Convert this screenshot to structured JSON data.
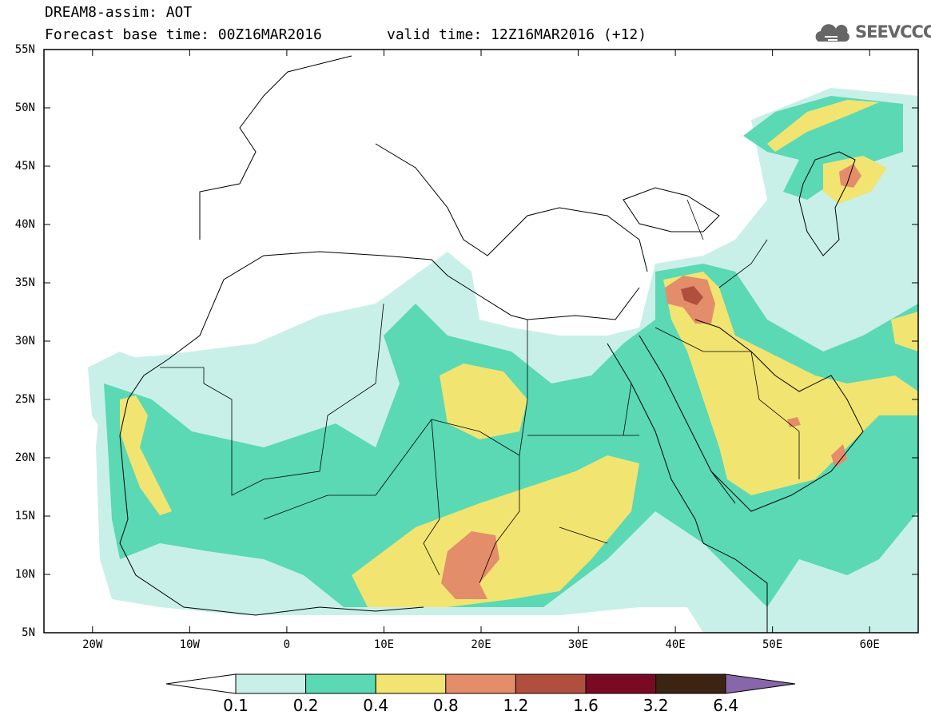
{
  "header": {
    "title": "DREAM8-assim: AOT",
    "base_time": "Forecast base time: 00Z16MAR2016",
    "valid_time": "valid time: 12Z16MAR2016 (+12)",
    "logo_text": "SEEVCCC"
  },
  "map": {
    "lon_range": [
      -25,
      65
    ],
    "lat_range": [
      5,
      55
    ],
    "lat_ticks": [
      "55N",
      "50N",
      "45N",
      "40N",
      "35N",
      "30N",
      "25N",
      "20N",
      "15N",
      "10N",
      "5N"
    ],
    "lon_ticks": [
      "20W",
      "10W",
      "0",
      "10E",
      "20E",
      "30E",
      "40E",
      "50E",
      "60E"
    ]
  },
  "colorbar": {
    "labels": [
      "0.1",
      "0.2",
      "0.4",
      "0.8",
      "1.2",
      "1.6",
      "3.2",
      "6.4"
    ],
    "colors": [
      "#c8f0e8",
      "#5ad9b4",
      "#f2e471",
      "#e48d6a",
      "#b14f3e",
      "#7a0a24",
      "#3b2412",
      "#8866aa"
    ]
  }
}
